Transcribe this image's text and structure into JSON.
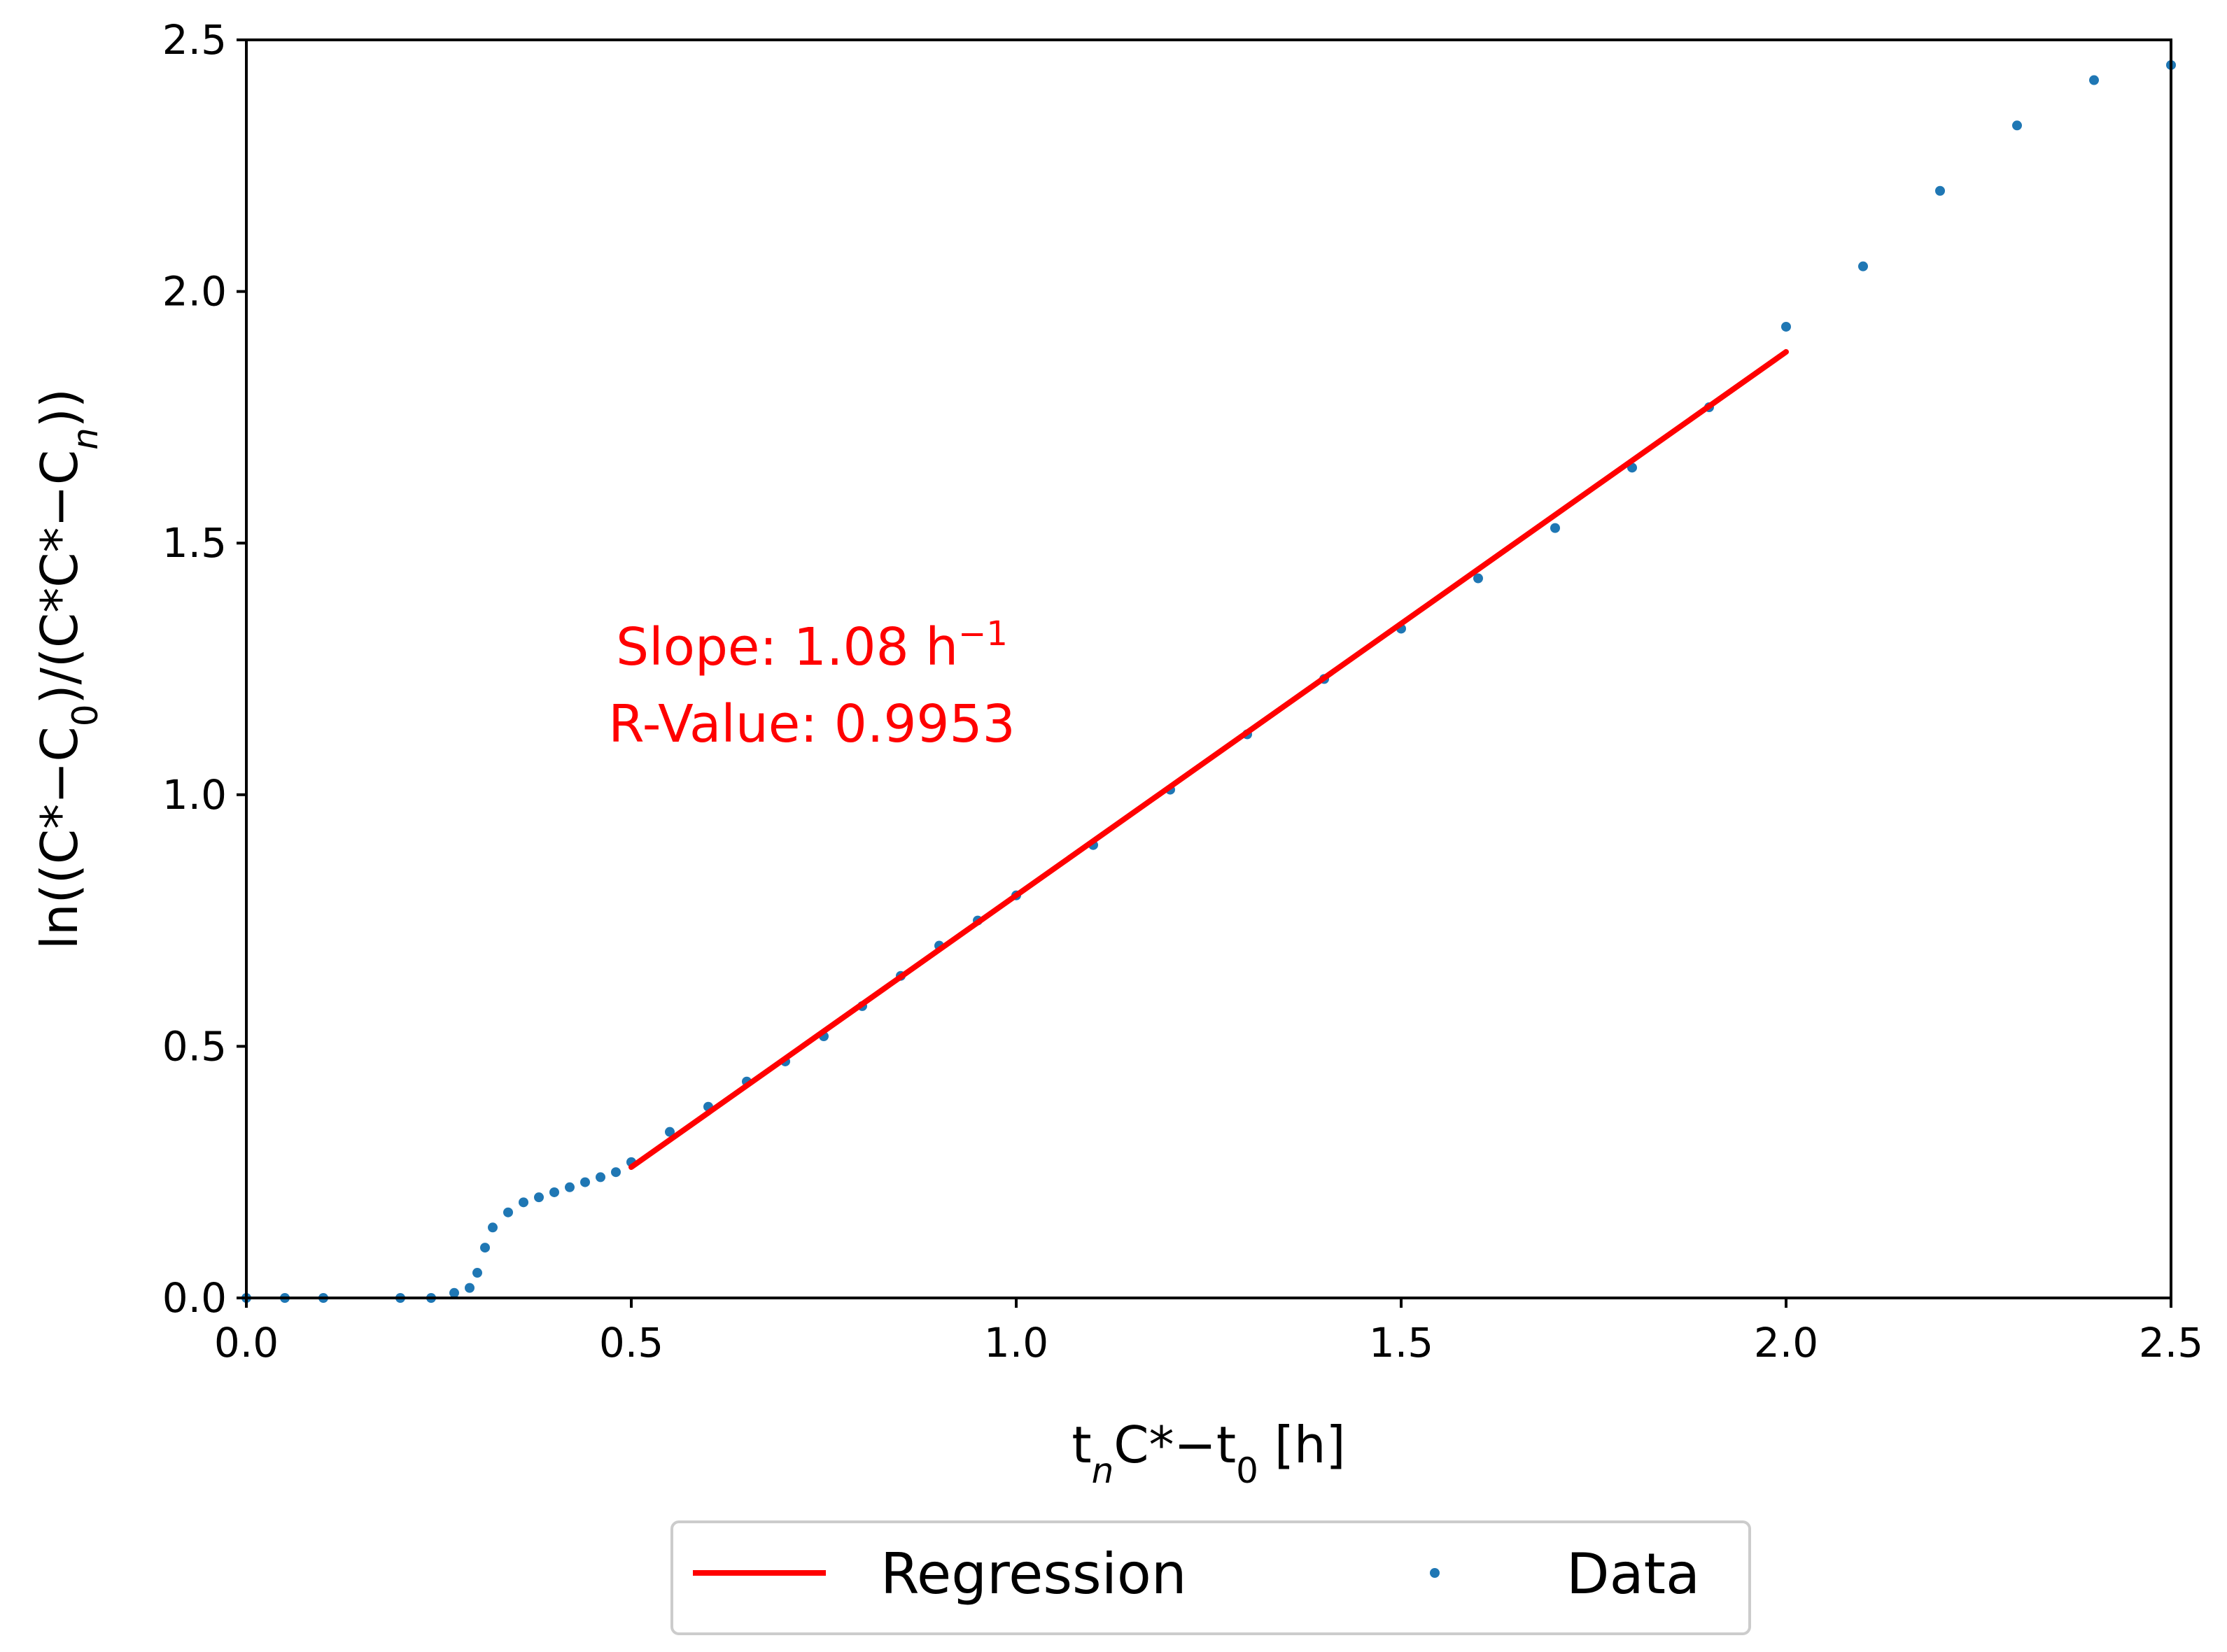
{
  "chart_data": {
    "type": "scatter",
    "xlabel": "tₙC*−t₀ [h]",
    "ylabel": "ln((C*−C₀)/(C*C*−Cₙ))",
    "xlim": [
      0.0,
      2.5
    ],
    "ylim": [
      0.0,
      2.5
    ],
    "xticks": [
      "0.0",
      "0.5",
      "1.0",
      "1.5",
      "2.0",
      "2.5"
    ],
    "yticks": [
      "0.0",
      "0.5",
      "1.0",
      "1.5",
      "2.0",
      "2.5"
    ],
    "grid": false,
    "colors": {
      "data": "#1f77b4",
      "regression": "#ff0000",
      "annotation": "#ff0000"
    },
    "annotation": {
      "slope_label": "Slope: 1.08  h",
      "slope_sup": "−1",
      "r_label": "R-Value: 0.9953"
    },
    "legend": {
      "position": "bottom-center, below plot",
      "entries": [
        {
          "label": "Regression",
          "marker": "line",
          "color": "#ff0000"
        },
        {
          "label": "Data",
          "marker": "dot",
          "color": "#1f77b4"
        }
      ]
    },
    "series": [
      {
        "name": "Regression",
        "kind": "line",
        "x": [
          0.5,
          2.0
        ],
        "y": [
          0.26,
          1.88
        ]
      },
      {
        "name": "Data",
        "kind": "scatter",
        "x": [
          0.0,
          0.05,
          0.1,
          0.2,
          0.24,
          0.27,
          0.29,
          0.3,
          0.31,
          0.32,
          0.34,
          0.36,
          0.38,
          0.4,
          0.42,
          0.44,
          0.46,
          0.48,
          0.5,
          0.55,
          0.6,
          0.65,
          0.7,
          0.75,
          0.8,
          0.85,
          0.9,
          0.95,
          1.0,
          1.1,
          1.2,
          1.3,
          1.4,
          1.5,
          1.6,
          1.7,
          1.8,
          1.9,
          2.0,
          2.1,
          2.2,
          2.3,
          2.4,
          2.5
        ],
        "y": [
          0.0,
          0.0,
          0.0,
          0.0,
          0.0,
          0.01,
          0.02,
          0.05,
          0.1,
          0.14,
          0.17,
          0.19,
          0.2,
          0.21,
          0.22,
          0.23,
          0.24,
          0.25,
          0.27,
          0.33,
          0.38,
          0.43,
          0.47,
          0.52,
          0.58,
          0.64,
          0.7,
          0.75,
          0.8,
          0.9,
          1.01,
          1.12,
          1.23,
          1.33,
          1.43,
          1.53,
          1.65,
          1.77,
          1.93,
          2.05,
          2.2,
          2.33,
          2.42,
          2.45
        ]
      }
    ]
  }
}
